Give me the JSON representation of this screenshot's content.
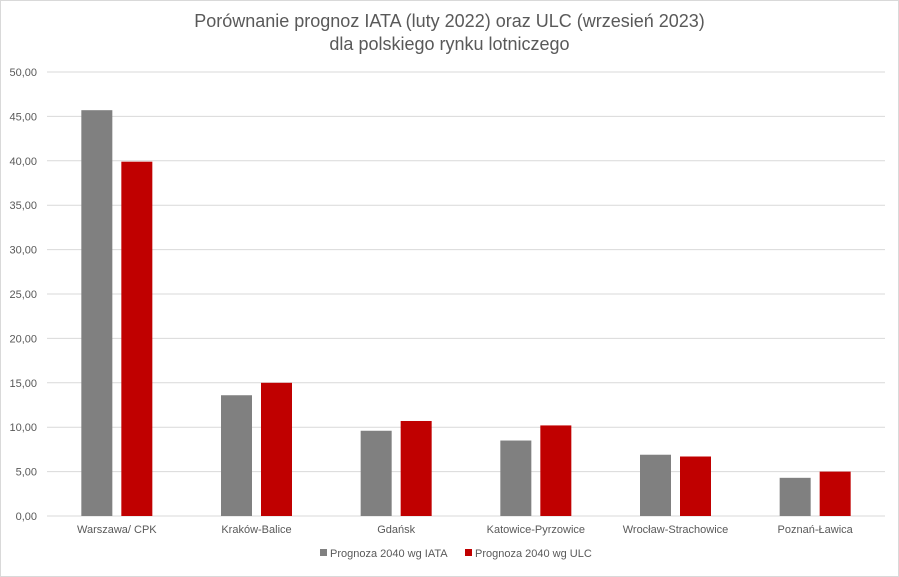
{
  "chart_data": {
    "type": "bar",
    "title": "Porównanie prognoz IATA (luty 2022) oraz ULC (wrzesień 2023)",
    "subtitle": "dla polskiego rynku lotniczego",
    "xlabel": "",
    "ylabel": "",
    "ylim": [
      0,
      50
    ],
    "yticks": [
      "0,00",
      "5,00",
      "10,00",
      "15,00",
      "20,00",
      "25,00",
      "30,00",
      "35,00",
      "40,00",
      "45,00",
      "50,00"
    ],
    "grid": true,
    "legend_position": "bottom",
    "categories": [
      "Warszawa/ CPK",
      "Kraków-Balice",
      "Gdańsk",
      "Katowice-Pyrzowice",
      "Wrocław-Strachowice",
      "Poznań-Ławica"
    ],
    "series": [
      {
        "name": "Prognoza 2040 wg IATA",
        "color": "#808080",
        "values": [
          45.7,
          13.6,
          9.6,
          8.5,
          6.9,
          4.3
        ]
      },
      {
        "name": "Prognoza 2040 wg ULC",
        "color": "#c00000",
        "values": [
          39.9,
          15.0,
          10.7,
          10.2,
          6.7,
          5.0
        ]
      }
    ]
  }
}
